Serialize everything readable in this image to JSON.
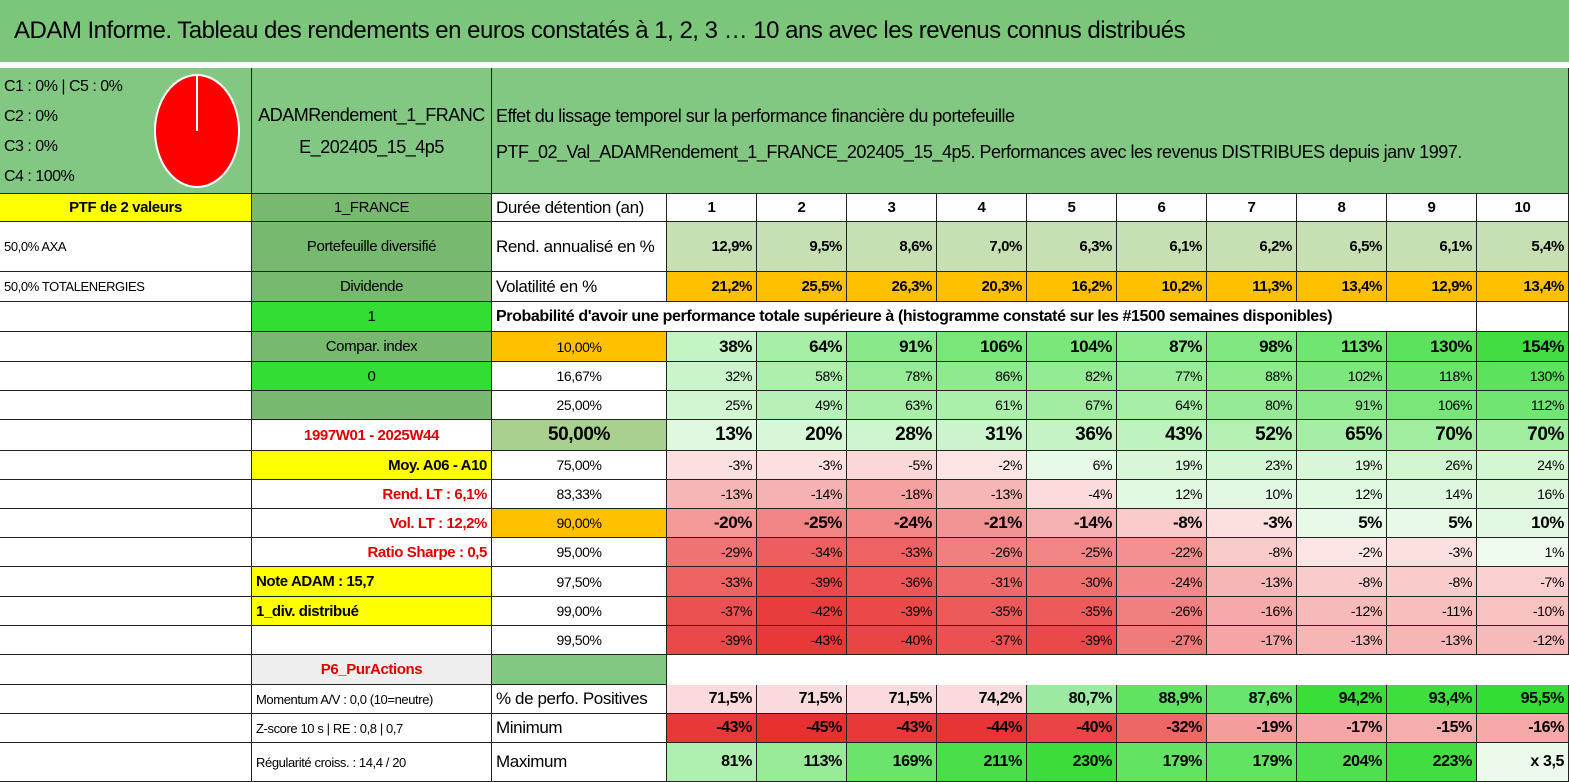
{
  "header": {
    "title": "ADAM Informe. Tableau des rendements en euros constatés à 1, 2, 3 … 10 ans avec les revenus connus distribués"
  },
  "pie_legend": [
    "C1 : 0% | C5 : 0%",
    "C2 : 0%",
    "C3 : 0%",
    "C4 : 100%"
  ],
  "portfolio_name": "ADAMRendement_1_FRANCE_202405_15_4p5",
  "description": [
    "Effet du lissage temporel sur la performance financière du portefeuille",
    "PTF_02_Val_ADAMRendement_1_FRANCE_202405_15_4p5. Performances avec les revenus DISTRIBUES depuis janv 1997."
  ],
  "col_a": [
    "PTF de 2 valeurs",
    "50,0% AXA",
    "50,0% TOTALENERGIES"
  ],
  "col_b": [
    "1_FRANCE",
    "Portefeuille diversifié",
    "Dividende",
    "1",
    "Compar. index",
    "0",
    "1997W01 - 2025W44",
    "Moy. A06 - A10",
    "Rend. LT : 6,1%",
    "Vol. LT : 12,2%",
    "Ratio Sharpe : 0,5",
    "Note ADAM : 15,7",
    "1_div. distribué",
    "P6_PurActions",
    "Momentum A/V : 0,0 (10=neutre)",
    "Z-score 10 s | RE : 0,8 | 0,7",
    "Régularité croiss. : 14,4 / 20"
  ],
  "table": {
    "header_label": "Durée détention (an)",
    "years": [
      "1",
      "2",
      "3",
      "4",
      "5",
      "6",
      "7",
      "8",
      "9",
      "10"
    ],
    "rows": [
      {
        "label": "Rend. annualisé en %",
        "values": [
          "12,9%",
          "9,5%",
          "8,6%",
          "7,0%",
          "6,3%",
          "6,1%",
          "6,2%",
          "6,5%",
          "6,1%",
          "5,4%"
        ]
      },
      {
        "label": "Volatilité en %",
        "values": [
          "21,2%",
          "25,5%",
          "26,3%",
          "20,3%",
          "16,2%",
          "10,2%",
          "11,3%",
          "13,4%",
          "12,9%",
          "13,4%"
        ]
      }
    ]
  },
  "caption": "Probabilité d'avoir une performance totale supérieure à (histogramme constaté sur les #1500 semaines disponibles)",
  "percentiles": [
    {
      "label": "10,00%",
      "values": [
        "38%",
        "64%",
        "91%",
        "106%",
        "104%",
        "87%",
        "98%",
        "113%",
        "130%",
        "154%"
      ]
    },
    {
      "label": "16,67%",
      "values": [
        "32%",
        "58%",
        "78%",
        "86%",
        "82%",
        "77%",
        "88%",
        "102%",
        "118%",
        "130%"
      ]
    },
    {
      "label": "25,00%",
      "values": [
        "25%",
        "49%",
        "63%",
        "61%",
        "67%",
        "64%",
        "80%",
        "91%",
        "106%",
        "112%"
      ]
    },
    {
      "label": "50,00%",
      "values": [
        "13%",
        "20%",
        "28%",
        "31%",
        "36%",
        "43%",
        "52%",
        "65%",
        "70%",
        "70%"
      ]
    },
    {
      "label": "75,00%",
      "values": [
        "-3%",
        "-3%",
        "-5%",
        "-2%",
        "6%",
        "19%",
        "23%",
        "19%",
        "26%",
        "24%"
      ]
    },
    {
      "label": "83,33%",
      "values": [
        "-13%",
        "-14%",
        "-18%",
        "-13%",
        "-4%",
        "12%",
        "10%",
        "12%",
        "14%",
        "16%"
      ]
    },
    {
      "label": "90,00%",
      "values": [
        "-20%",
        "-25%",
        "-24%",
        "-21%",
        "-14%",
        "-8%",
        "-3%",
        "5%",
        "5%",
        "10%"
      ]
    },
    {
      "label": "95,00%",
      "values": [
        "-29%",
        "-34%",
        "-33%",
        "-26%",
        "-25%",
        "-22%",
        "-8%",
        "-2%",
        "-3%",
        "1%"
      ]
    },
    {
      "label": "97,50%",
      "values": [
        "-33%",
        "-39%",
        "-36%",
        "-31%",
        "-30%",
        "-24%",
        "-13%",
        "-8%",
        "-8%",
        "-7%"
      ]
    },
    {
      "label": "99,00%",
      "values": [
        "-37%",
        "-42%",
        "-39%",
        "-35%",
        "-35%",
        "-26%",
        "-16%",
        "-12%",
        "-11%",
        "-10%"
      ]
    },
    {
      "label": "99,50%",
      "values": [
        "-39%",
        "-43%",
        "-40%",
        "-37%",
        "-39%",
        "-27%",
        "-17%",
        "-13%",
        "-13%",
        "-12%"
      ]
    }
  ],
  "stats": [
    {
      "label": "% de perfo. Positives",
      "values": [
        "71,5%",
        "71,5%",
        "71,5%",
        "74,2%",
        "80,7%",
        "88,9%",
        "87,6%",
        "94,2%",
        "93,4%",
        "95,5%"
      ]
    },
    {
      "label": "Minimum",
      "values": [
        "-43%",
        "-45%",
        "-43%",
        "-44%",
        "-40%",
        "-32%",
        "-19%",
        "-17%",
        "-15%",
        "-16%"
      ]
    },
    {
      "label": "Maximum",
      "values": [
        "81%",
        "113%",
        "169%",
        "211%",
        "230%",
        "179%",
        "179%",
        "204%",
        "223%",
        "x 3,5"
      ]
    }
  ]
}
